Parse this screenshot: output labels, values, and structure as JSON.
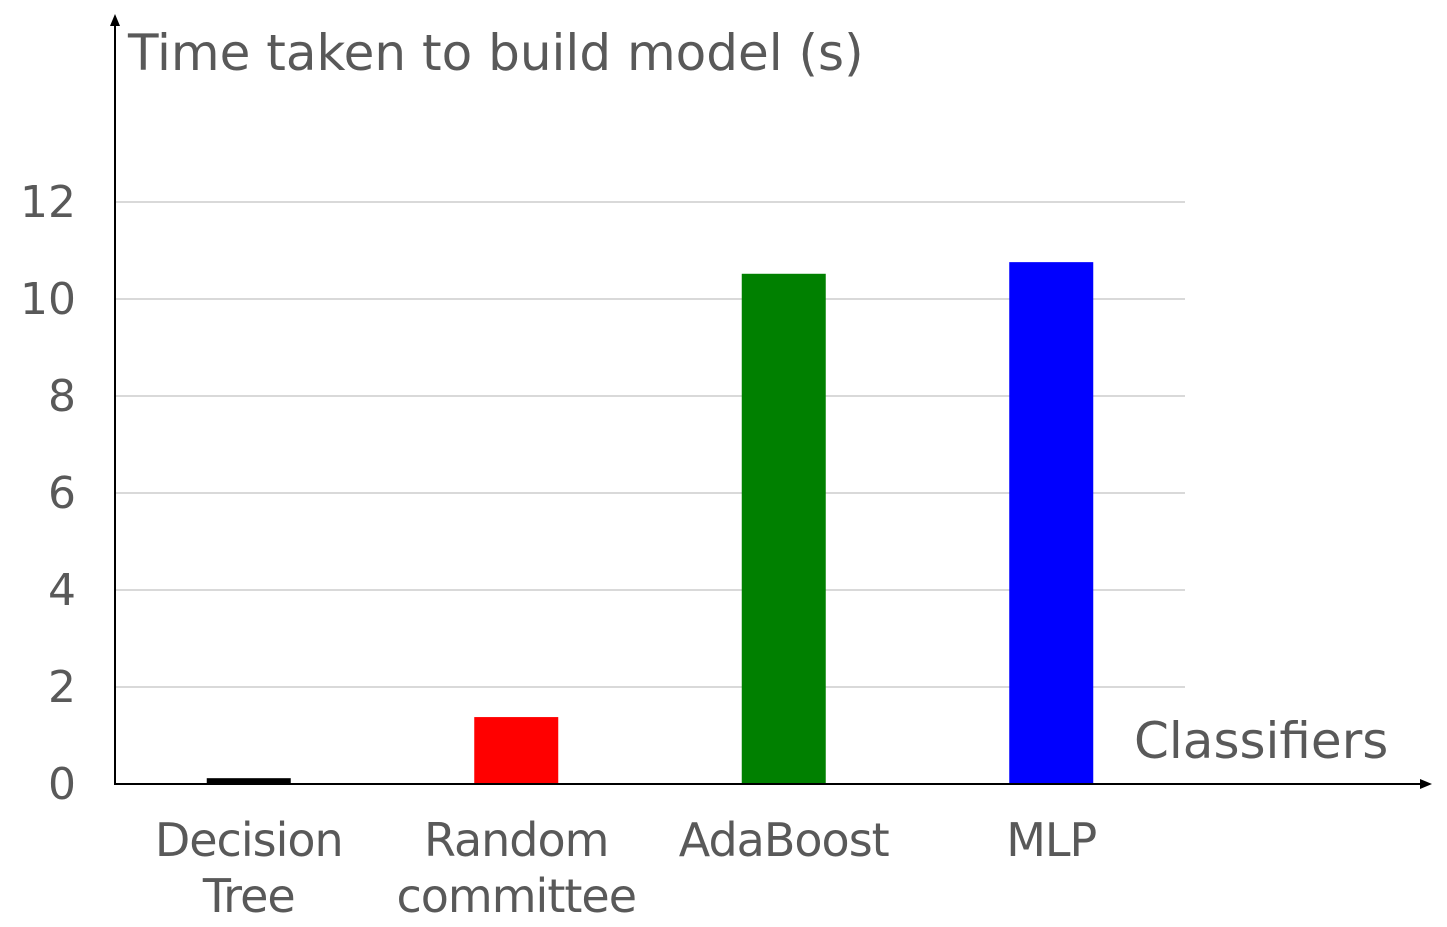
{
  "chart_data": {
    "type": "bar",
    "ylabel": "Time taken to build model (s)",
    "xlabel": "Classifiers",
    "categories": [
      [
        "Decision",
        "Tree"
      ],
      [
        "Random",
        "committee"
      ],
      [
        "AdaBoost"
      ],
      [
        "MLP"
      ]
    ],
    "values": [
      0.12,
      1.38,
      10.52,
      10.76
    ],
    "bar_colors": [
      "#000000",
      "#ff0000",
      "#008000",
      "#0000ff"
    ],
    "yticks": [
      0,
      2,
      4,
      6,
      8,
      10,
      12
    ],
    "ylim": [
      0,
      12
    ],
    "grid": true
  }
}
